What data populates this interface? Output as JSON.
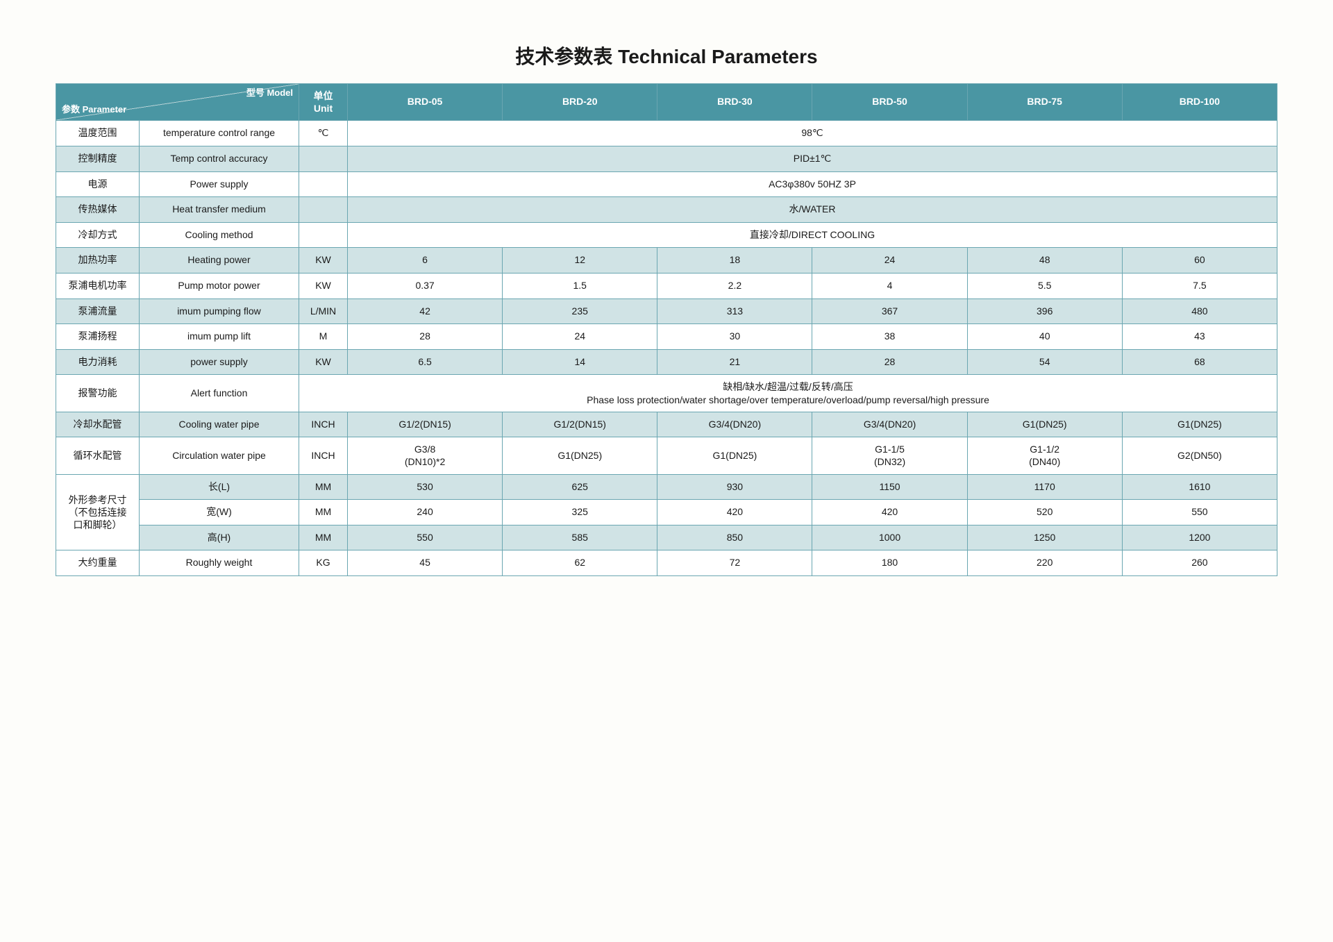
{
  "title": "技术参数表 Technical Parameters",
  "header": {
    "paramLabel": "参数 Parameter",
    "modelLabel": "型号 Model",
    "unitLabel_l1": "单位",
    "unitLabel_l2": "Unit",
    "models": [
      "BRD-05",
      "BRD-20",
      "BRD-30",
      "BRD-50",
      "BRD-75",
      "BRD-100"
    ]
  },
  "rows": [
    {
      "cn": "温度范围",
      "en": "temperature control range",
      "unit": "℃",
      "span": "98℃",
      "odd": true
    },
    {
      "cn": "控制精度",
      "en": "Temp control accuracy",
      "unit": "",
      "span": "PID±1℃",
      "odd": false
    },
    {
      "cn": "电源",
      "en": "Power supply",
      "unit": "",
      "span": "AC3φ380v 50HZ 3P",
      "odd": true
    },
    {
      "cn": "传热媒体",
      "en": "Heat transfer medium",
      "unit": "",
      "span": "水/WATER",
      "odd": false
    },
    {
      "cn": "冷却方式",
      "en": "Cooling method",
      "unit": "",
      "span": "直接冷却/DIRECT COOLING",
      "odd": true
    },
    {
      "cn": "加热功率",
      "en": "Heating power",
      "unit": "KW",
      "vals": [
        "6",
        "12",
        "18",
        "24",
        "48",
        "60"
      ],
      "odd": false
    },
    {
      "cn": "泵浦电机功率",
      "en": "Pump motor power",
      "unit": "KW",
      "vals": [
        "0.37",
        "1.5",
        "2.2",
        "4",
        "5.5",
        "7.5"
      ],
      "odd": true
    },
    {
      "cn": "泵浦流量",
      "en": "imum pumping flow",
      "unit": "L/MIN",
      "vals": [
        "42",
        "235",
        "313",
        "367",
        "396",
        "480"
      ],
      "odd": false
    },
    {
      "cn": "泵浦扬程",
      "en": "imum pump lift",
      "unit": "M",
      "vals": [
        "28",
        "24",
        "30",
        "38",
        "40",
        "43"
      ],
      "odd": true
    },
    {
      "cn": "电力消耗",
      "en": "power supply",
      "unit": "KW",
      "vals": [
        "6.5",
        "14",
        "21",
        "28",
        "54",
        "68"
      ],
      "odd": false
    },
    {
      "cn": "报警功能",
      "en": "Alert function",
      "unit": "",
      "span2": {
        "l1": "缺相/缺水/超温/过载/反转/高压",
        "l2": "Phase loss protection/water shortage/over temperature/overload/pump reversal/high pressure"
      },
      "includeUnit": true,
      "odd": true
    },
    {
      "cn": "冷却水配管",
      "en": "Cooling water pipe",
      "unit": "INCH",
      "vals": [
        "G1/2(DN15)",
        "G1/2(DN15)",
        "G3/4(DN20)",
        "G3/4(DN20)",
        "G1(DN25)",
        "G1(DN25)"
      ],
      "odd": false
    },
    {
      "cn": "循环水配管",
      "en": "Circulation water pipe",
      "unit": "INCH",
      "vals2": [
        {
          "l1": "G3/8",
          "l2": "(DN10)*2"
        },
        {
          "l1": "G1(DN25)"
        },
        {
          "l1": "G1(DN25)"
        },
        {
          "l1": "G1-1/5",
          "l2": "(DN32)"
        },
        {
          "l1": "G1-1/2",
          "l2": "(DN40)"
        },
        {
          "l1": "G2(DN50)"
        }
      ],
      "odd": true
    }
  ],
  "dimGroup": {
    "label_l1": "外形参考尺寸",
    "label_l2": "（不包括连接",
    "label_l3": "口和脚轮）",
    "rows": [
      {
        "sub": "长(L)",
        "unit": "MM",
        "vals": [
          "530",
          "625",
          "930",
          "1150",
          "1170",
          "1610"
        ],
        "odd": false
      },
      {
        "sub": "宽(W)",
        "unit": "MM",
        "vals": [
          "240",
          "325",
          "420",
          "420",
          "520",
          "550"
        ],
        "odd": true
      },
      {
        "sub": "高(H)",
        "unit": "MM",
        "vals": [
          "550",
          "585",
          "850",
          "1000",
          "1250",
          "1200"
        ],
        "odd": false
      }
    ]
  },
  "weightRow": {
    "cn": "大约重量",
    "en": "Roughly weight",
    "unit": "KG",
    "vals": [
      "45",
      "62",
      "72",
      "180",
      "220",
      "260"
    ],
    "odd": true
  }
}
